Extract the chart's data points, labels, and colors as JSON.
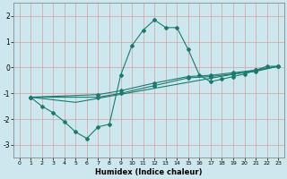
{
  "xlabel": "Humidex (Indice chaleur)",
  "bg_color": "#cce8ee",
  "grid_color_v": "#d4a0a0",
  "grid_color_h": "#d4a0a0",
  "line_color": "#1a7a6e",
  "xlim": [
    -0.5,
    23.5
  ],
  "ylim": [
    -3.5,
    2.5
  ],
  "xticks": [
    0,
    1,
    2,
    3,
    4,
    5,
    6,
    7,
    8,
    9,
    10,
    11,
    12,
    13,
    14,
    15,
    16,
    17,
    18,
    19,
    20,
    21,
    22,
    23
  ],
  "yticks": [
    -3,
    -2,
    -1,
    0,
    1,
    2
  ],
  "line1_x": [
    1,
    2,
    3,
    4,
    5,
    6,
    7,
    8,
    9,
    10,
    11,
    12,
    13,
    14,
    15,
    16,
    17,
    18,
    19,
    20,
    21,
    22,
    23
  ],
  "line1_y": [
    -1.15,
    -1.5,
    -1.75,
    -2.1,
    -2.5,
    -2.75,
    -2.3,
    -2.2,
    -0.3,
    0.85,
    1.45,
    1.85,
    1.55,
    1.55,
    0.7,
    -0.3,
    -0.55,
    -0.45,
    -0.35,
    -0.25,
    -0.1,
    0.05,
    0.05
  ],
  "line2_x": [
    1,
    5,
    23
  ],
  "line2_y": [
    -1.15,
    -1.35,
    0.05
  ],
  "line3_x": [
    1,
    7,
    9,
    12,
    15,
    17,
    19,
    21,
    23
  ],
  "line3_y": [
    -1.15,
    -1.05,
    -0.9,
    -0.6,
    -0.35,
    -0.3,
    -0.2,
    -0.1,
    0.05
  ],
  "line4_x": [
    1,
    7,
    9,
    12,
    15,
    17,
    19,
    21,
    23
  ],
  "line4_y": [
    -1.15,
    -1.15,
    -1.0,
    -0.7,
    -0.4,
    -0.35,
    -0.25,
    -0.15,
    0.05
  ]
}
